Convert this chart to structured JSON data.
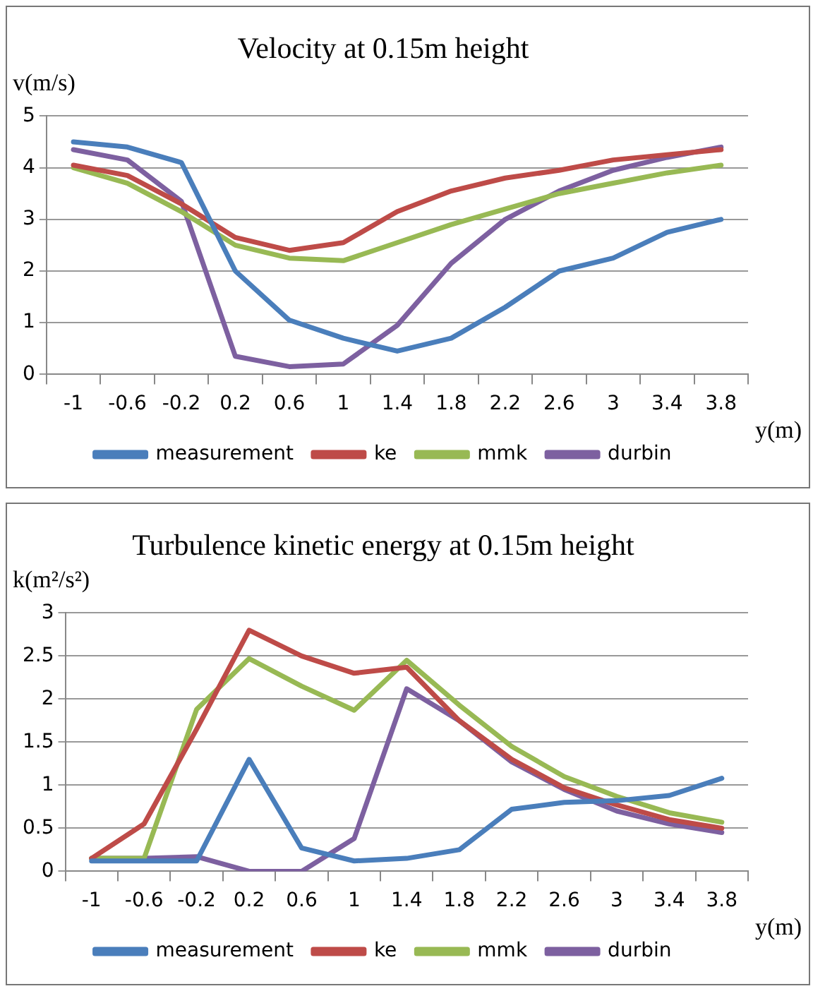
{
  "chart_data": [
    {
      "type": "line",
      "title": "Velocity at 0.15m height",
      "ylabel": "v(m/s)",
      "xlabel": "y(m)",
      "categories": [
        "-1",
        "-0.6",
        "-0.2",
        "0.2",
        "0.6",
        "1",
        "1.4",
        "1.8",
        "2.2",
        "2.6",
        "3",
        "3.4",
        "3.8"
      ],
      "series": [
        {
          "name": "measurement",
          "color": "#4a7ebb",
          "values": [
            4.5,
            4.4,
            4.1,
            2.0,
            1.05,
            0.7,
            0.45,
            0.7,
            1.3,
            2.0,
            2.25,
            2.75,
            3.0
          ]
        },
        {
          "name": "ke",
          "color": "#be4b48",
          "values": [
            4.05,
            3.85,
            3.3,
            2.65,
            2.4,
            2.55,
            3.15,
            3.55,
            3.8,
            3.95,
            4.15,
            4.25,
            4.35
          ]
        },
        {
          "name": "mmk",
          "color": "#98b954",
          "values": [
            4.0,
            3.7,
            3.15,
            2.5,
            2.25,
            2.2,
            2.55,
            2.9,
            3.2,
            3.5,
            3.7,
            3.9,
            4.05
          ]
        },
        {
          "name": "durbin",
          "color": "#7d60a0",
          "values": [
            4.35,
            4.15,
            3.35,
            0.35,
            0.15,
            0.2,
            0.95,
            2.15,
            3.0,
            3.55,
            3.95,
            4.2,
            4.4
          ]
        }
      ],
      "ylim": [
        0,
        5
      ],
      "yticks": [
        0,
        1,
        2,
        3,
        4,
        5
      ],
      "grid": "y",
      "legend": "bottom",
      "marker": "none",
      "line_style": "solid"
    },
    {
      "type": "line",
      "title": "Turbulence kinetic energy at 0.15m height",
      "ylabel": "k(m²/s²)",
      "xlabel": "y(m)",
      "categories": [
        "-1",
        "-0.6",
        "-0.2",
        "0.2",
        "0.6",
        "1",
        "1.4",
        "1.8",
        "2.2",
        "2.6",
        "3",
        "3.4",
        "3.8"
      ],
      "series": [
        {
          "name": "measurement",
          "color": "#4a7ebb",
          "values": [
            0.12,
            0.12,
            0.12,
            1.3,
            0.27,
            0.12,
            0.15,
            0.25,
            0.72,
            0.8,
            0.82,
            0.88,
            1.08
          ]
        },
        {
          "name": "ke",
          "color": "#be4b48",
          "values": [
            0.15,
            0.55,
            1.65,
            2.8,
            2.5,
            2.3,
            2.37,
            1.75,
            1.3,
            0.97,
            0.77,
            0.6,
            0.5
          ]
        },
        {
          "name": "mmk",
          "color": "#98b954",
          "values": [
            0.15,
            0.15,
            1.88,
            2.47,
            2.15,
            1.87,
            2.45,
            1.93,
            1.45,
            1.1,
            0.87,
            0.68,
            0.57
          ]
        },
        {
          "name": "durbin",
          "color": "#7d60a0",
          "values": [
            0.15,
            0.15,
            0.17,
            0,
            0,
            0.38,
            2.12,
            1.75,
            1.27,
            0.95,
            0.7,
            0.55,
            0.45
          ]
        }
      ],
      "ylim": [
        0,
        3
      ],
      "yticks": [
        0,
        0.5,
        1,
        1.5,
        2,
        2.5,
        3
      ],
      "grid": "y",
      "legend": "bottom",
      "marker": "none",
      "line_style": "solid"
    }
  ]
}
